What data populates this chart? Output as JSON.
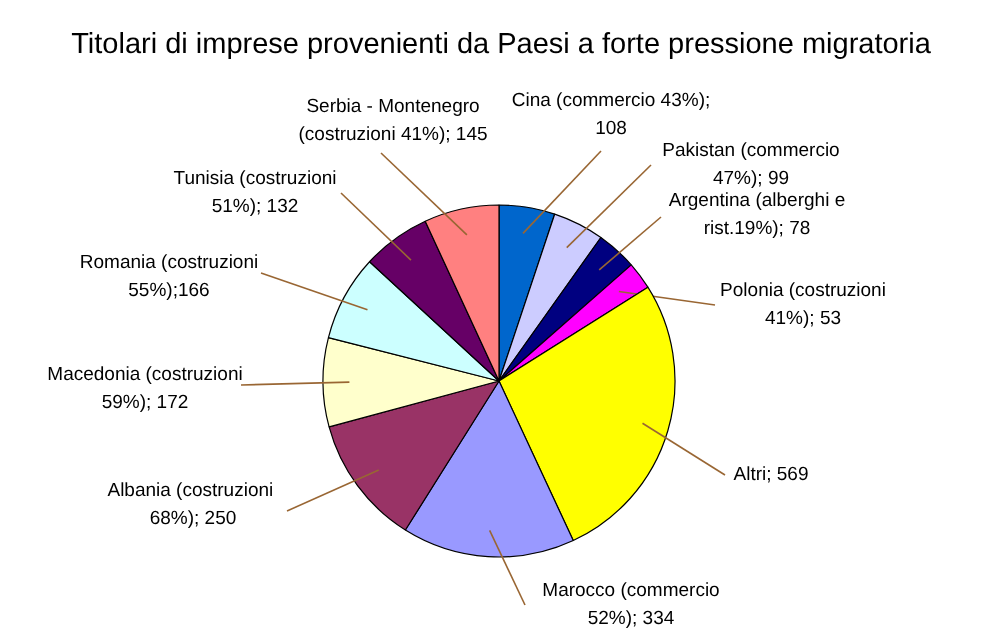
{
  "chart_data": {
    "type": "pie",
    "title": "Titolari di imprese provenienti da Paesi a forte pressione migratoria",
    "categories": [
      "Cina (commercio 43%);\n108",
      "Pakistan (commercio\n47%); 99",
      "Argentina (alberghi e\nrist.19%); 78",
      "Polonia (costruzioni\n41%); 53",
      "Altri; 569",
      "Marocco (commercio\n52%); 334",
      "Albania  (costruzioni\n68%); 250",
      "Macedonia (costruzioni\n59%); 172",
      "Romania (costruzioni\n55%);166",
      "Tunisia (costruzioni\n51%); 132",
      "Serbia - Montenegro\n(costruzioni 41%); 145"
    ],
    "values": [
      108,
      99,
      78,
      53,
      569,
      334,
      250,
      172,
      166,
      132,
      145
    ],
    "colors": [
      "#0066cc",
      "#ccccff",
      "#000080",
      "#ff00ff",
      "#ffff00",
      "#9999ff",
      "#993366",
      "#ffffcc",
      "#ccffff",
      "#660066",
      "#ff8080"
    ]
  }
}
